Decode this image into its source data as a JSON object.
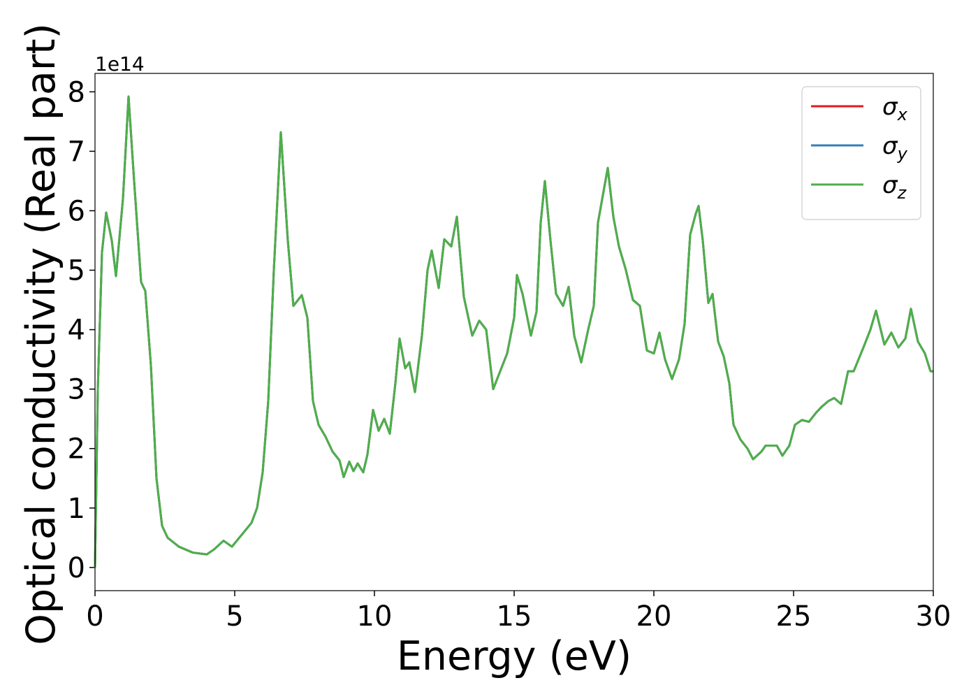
{
  "chart_data": {
    "type": "line",
    "xlabel": "Energy (eV)",
    "ylabel": "Optical conductivity (Real part)",
    "y_offset_label": "1e14",
    "xlim": [
      0,
      30
    ],
    "xticks": [
      0,
      5,
      10,
      15,
      20,
      25,
      30
    ],
    "ylim": [
      -0.39,
      8.31
    ],
    "yticks": [
      0,
      1,
      2,
      3,
      4,
      5,
      6,
      7,
      8
    ],
    "legend": "upper right",
    "x": [
      0,
      0.1,
      0.25,
      0.4,
      0.6,
      0.75,
      1.0,
      1.2,
      1.4,
      1.65,
      1.8,
      2.0,
      2.2,
      2.4,
      2.6,
      3.0,
      3.5,
      4.0,
      4.25,
      4.6,
      4.9,
      5.25,
      5.6,
      5.8,
      6.0,
      6.2,
      6.4,
      6.65,
      6.9,
      7.1,
      7.4,
      7.6,
      7.8,
      8.0,
      8.25,
      8.5,
      8.75,
      8.9,
      9.1,
      9.25,
      9.4,
      9.6,
      9.75,
      9.95,
      10.15,
      10.35,
      10.55,
      10.75,
      10.9,
      11.1,
      11.25,
      11.45,
      11.7,
      11.9,
      12.05,
      12.3,
      12.5,
      12.75,
      12.95,
      13.2,
      13.5,
      13.75,
      14.0,
      14.25,
      14.5,
      14.75,
      15.0,
      15.1,
      15.3,
      15.6,
      15.8,
      15.95,
      16.1,
      16.3,
      16.5,
      16.75,
      16.95,
      17.15,
      17.4,
      17.65,
      17.85,
      18.0,
      18.35,
      18.55,
      18.75,
      19.0,
      19.25,
      19.5,
      19.75,
      20.0,
      20.2,
      20.4,
      20.65,
      20.9,
      21.1,
      21.3,
      21.5,
      21.6,
      21.75,
      21.95,
      22.1,
      22.3,
      22.5,
      22.7,
      22.85,
      23.1,
      23.35,
      23.55,
      23.85,
      24.0,
      24.2,
      24.4,
      24.6,
      24.85,
      25.05,
      25.3,
      25.55,
      25.8,
      26.0,
      26.25,
      26.45,
      26.7,
      26.95,
      27.15,
      27.5,
      27.75,
      27.95,
      28.25,
      28.5,
      28.75,
      29.0,
      29.2,
      29.45,
      29.7,
      29.9,
      30
    ],
    "series": [
      {
        "name": "σx",
        "color": "#e41a1c",
        "values": [
          0,
          3.0,
          5.3,
          5.97,
          5.5,
          4.9,
          6.2,
          7.92,
          6.5,
          4.8,
          4.65,
          3.4,
          1.5,
          0.7,
          0.5,
          0.35,
          0.25,
          0.22,
          0.3,
          0.45,
          0.35,
          0.55,
          0.75,
          1.0,
          1.6,
          2.8,
          5.0,
          7.32,
          5.5,
          4.4,
          4.58,
          4.2,
          2.8,
          2.4,
          2.2,
          1.95,
          1.8,
          1.52,
          1.78,
          1.62,
          1.75,
          1.6,
          1.9,
          2.65,
          2.3,
          2.5,
          2.25,
          3.1,
          3.85,
          3.35,
          3.45,
          2.95,
          3.9,
          5.0,
          5.33,
          4.7,
          5.52,
          5.4,
          5.9,
          4.55,
          3.9,
          4.15,
          4.0,
          3.0,
          3.3,
          3.6,
          4.2,
          4.92,
          4.6,
          3.9,
          4.3,
          5.8,
          6.5,
          5.5,
          4.6,
          4.4,
          4.72,
          3.9,
          3.45,
          4.0,
          4.4,
          5.8,
          6.72,
          5.9,
          5.4,
          5.0,
          4.5,
          4.4,
          3.65,
          3.6,
          3.95,
          3.5,
          3.17,
          3.5,
          4.1,
          5.6,
          5.95,
          6.08,
          5.5,
          4.45,
          4.6,
          3.8,
          3.55,
          3.1,
          2.4,
          2.15,
          2.0,
          1.82,
          1.95,
          2.05,
          2.05,
          2.05,
          1.88,
          2.05,
          2.4,
          2.48,
          2.45,
          2.6,
          2.7,
          2.8,
          2.85,
          2.75,
          3.3,
          3.3,
          3.7,
          4.0,
          4.32,
          3.75,
          3.95,
          3.7,
          3.85,
          4.35,
          3.8,
          3.6,
          3.3,
          3.3
        ]
      },
      {
        "name": "σy",
        "color": "#377eb8",
        "values": [
          0,
          3.0,
          5.3,
          5.97,
          5.5,
          4.9,
          6.2,
          7.92,
          6.5,
          4.8,
          4.65,
          3.4,
          1.5,
          0.7,
          0.5,
          0.35,
          0.25,
          0.22,
          0.3,
          0.45,
          0.35,
          0.55,
          0.75,
          1.0,
          1.6,
          2.8,
          5.0,
          7.32,
          5.5,
          4.4,
          4.58,
          4.2,
          2.8,
          2.4,
          2.2,
          1.95,
          1.8,
          1.52,
          1.78,
          1.62,
          1.75,
          1.6,
          1.9,
          2.65,
          2.3,
          2.5,
          2.25,
          3.1,
          3.85,
          3.35,
          3.45,
          2.95,
          3.9,
          5.0,
          5.33,
          4.7,
          5.52,
          5.4,
          5.9,
          4.55,
          3.9,
          4.15,
          4.0,
          3.0,
          3.3,
          3.6,
          4.2,
          4.92,
          4.6,
          3.9,
          4.3,
          5.8,
          6.5,
          5.5,
          4.6,
          4.4,
          4.72,
          3.9,
          3.45,
          4.0,
          4.4,
          5.8,
          6.72,
          5.9,
          5.4,
          5.0,
          4.5,
          4.4,
          3.65,
          3.6,
          3.95,
          3.5,
          3.17,
          3.5,
          4.1,
          5.6,
          5.95,
          6.08,
          5.5,
          4.45,
          4.6,
          3.8,
          3.55,
          3.1,
          2.4,
          2.15,
          2.0,
          1.82,
          1.95,
          2.05,
          2.05,
          2.05,
          1.88,
          2.05,
          2.4,
          2.48,
          2.45,
          2.6,
          2.7,
          2.8,
          2.85,
          2.75,
          3.3,
          3.3,
          3.7,
          4.0,
          4.32,
          3.75,
          3.95,
          3.7,
          3.85,
          4.35,
          3.8,
          3.6,
          3.3,
          3.3
        ]
      },
      {
        "name": "σz",
        "color": "#4daf4a",
        "values": [
          0,
          3.0,
          5.3,
          5.97,
          5.5,
          4.9,
          6.2,
          7.92,
          6.5,
          4.8,
          4.65,
          3.4,
          1.5,
          0.7,
          0.5,
          0.35,
          0.25,
          0.22,
          0.3,
          0.45,
          0.35,
          0.55,
          0.75,
          1.0,
          1.6,
          2.8,
          5.0,
          7.32,
          5.5,
          4.4,
          4.58,
          4.2,
          2.8,
          2.4,
          2.2,
          1.95,
          1.8,
          1.52,
          1.78,
          1.62,
          1.75,
          1.6,
          1.9,
          2.65,
          2.3,
          2.5,
          2.25,
          3.1,
          3.85,
          3.35,
          3.45,
          2.95,
          3.9,
          5.0,
          5.33,
          4.7,
          5.52,
          5.4,
          5.9,
          4.55,
          3.9,
          4.15,
          4.0,
          3.0,
          3.3,
          3.6,
          4.2,
          4.92,
          4.6,
          3.9,
          4.3,
          5.8,
          6.5,
          5.5,
          4.6,
          4.4,
          4.72,
          3.9,
          3.45,
          4.0,
          4.4,
          5.8,
          6.72,
          5.9,
          5.4,
          5.0,
          4.5,
          4.4,
          3.65,
          3.6,
          3.95,
          3.5,
          3.17,
          3.5,
          4.1,
          5.6,
          5.95,
          6.08,
          5.5,
          4.45,
          4.6,
          3.8,
          3.55,
          3.1,
          2.4,
          2.15,
          2.0,
          1.82,
          1.95,
          2.05,
          2.05,
          2.05,
          1.88,
          2.05,
          2.4,
          2.48,
          2.45,
          2.6,
          2.7,
          2.8,
          2.85,
          2.75,
          3.3,
          3.3,
          3.7,
          4.0,
          4.32,
          3.75,
          3.95,
          3.7,
          3.85,
          4.35,
          3.8,
          3.6,
          3.3,
          3.3
        ]
      }
    ]
  }
}
